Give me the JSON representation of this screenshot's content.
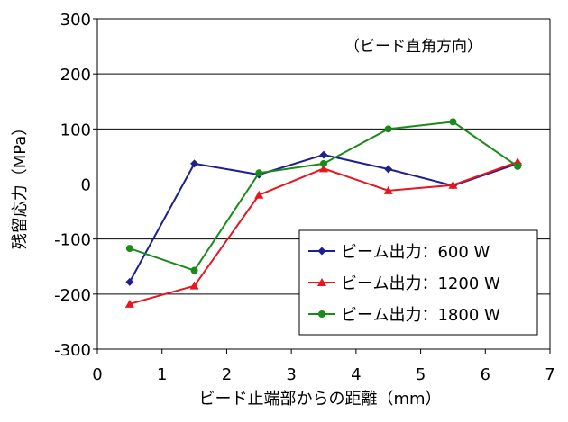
{
  "chart_data": {
    "type": "line",
    "title": "",
    "annotation": "（ビード直角方向）",
    "xlabel": "ビード止端部からの距離（mm）",
    "ylabel": "残留応力（MPa）",
    "xlim": [
      0,
      7
    ],
    "ylim": [
      -300,
      300
    ],
    "x_ticks": [
      "0",
      "1",
      "2",
      "3",
      "4",
      "5",
      "6",
      "7"
    ],
    "y_ticks": [
      "300",
      "200",
      "100",
      "0",
      "-100",
      "-200",
      "-300"
    ],
    "grid": "horizontal",
    "legend_position": "bottom-right",
    "series": [
      {
        "name": "ビーム出力：600 W",
        "color": "#1f1f8f",
        "marker": "diamond",
        "x": [
          0.5,
          1.5,
          2.5,
          3.5,
          4.5,
          5.5,
          6.5
        ],
        "y": [
          -178,
          37,
          17,
          53,
          27,
          -3,
          37
        ]
      },
      {
        "name": "ビーム出力：1200 W",
        "color": "#e8141e",
        "marker": "triangle",
        "x": [
          0.5,
          1.5,
          2.5,
          3.5,
          4.5,
          5.5,
          6.5
        ],
        "y": [
          -218,
          -185,
          -20,
          28,
          -12,
          -2,
          40
        ]
      },
      {
        "name": "ビーム出力：1800 W",
        "color": "#1a8a1a",
        "marker": "circle",
        "x": [
          0.5,
          1.5,
          2.5,
          3.5,
          4.5,
          5.5,
          6.5
        ],
        "y": [
          -117,
          -157,
          20,
          37,
          100,
          113,
          32
        ]
      }
    ]
  }
}
